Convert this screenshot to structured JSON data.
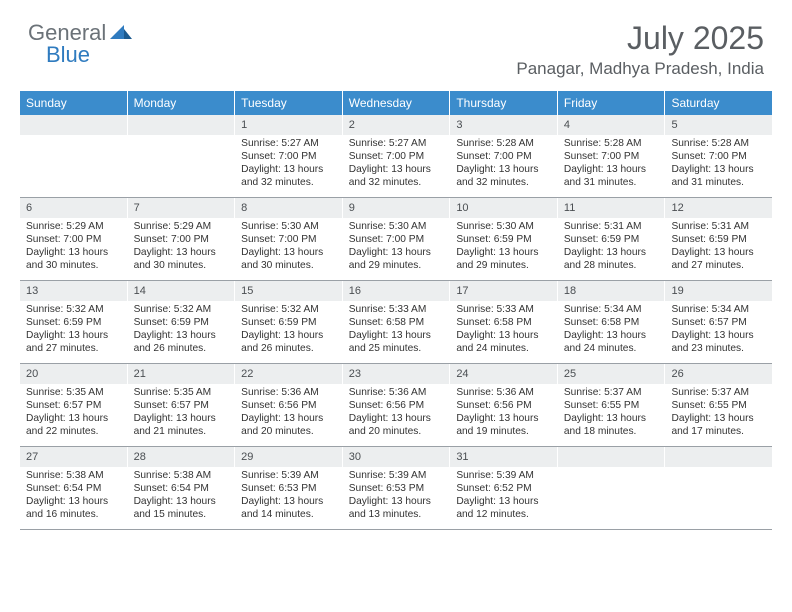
{
  "logo": {
    "general": "General",
    "blue": "Blue"
  },
  "title": "July 2025",
  "location": "Panagar, Madhya Pradesh, India",
  "colors": {
    "header_bg": "#3b8ccc",
    "daynum_bg": "#eceeef",
    "border": "#9aa0a6",
    "text": "#333333",
    "title_text": "#5a5e62"
  },
  "day_names": [
    "Sunday",
    "Monday",
    "Tuesday",
    "Wednesday",
    "Thursday",
    "Friday",
    "Saturday"
  ],
  "weeks": [
    [
      null,
      null,
      {
        "n": "1",
        "sr": "Sunrise: 5:27 AM",
        "ss": "Sunset: 7:00 PM",
        "dl": "Daylight: 13 hours and 32 minutes."
      },
      {
        "n": "2",
        "sr": "Sunrise: 5:27 AM",
        "ss": "Sunset: 7:00 PM",
        "dl": "Daylight: 13 hours and 32 minutes."
      },
      {
        "n": "3",
        "sr": "Sunrise: 5:28 AM",
        "ss": "Sunset: 7:00 PM",
        "dl": "Daylight: 13 hours and 32 minutes."
      },
      {
        "n": "4",
        "sr": "Sunrise: 5:28 AM",
        "ss": "Sunset: 7:00 PM",
        "dl": "Daylight: 13 hours and 31 minutes."
      },
      {
        "n": "5",
        "sr": "Sunrise: 5:28 AM",
        "ss": "Sunset: 7:00 PM",
        "dl": "Daylight: 13 hours and 31 minutes."
      }
    ],
    [
      {
        "n": "6",
        "sr": "Sunrise: 5:29 AM",
        "ss": "Sunset: 7:00 PM",
        "dl": "Daylight: 13 hours and 30 minutes."
      },
      {
        "n": "7",
        "sr": "Sunrise: 5:29 AM",
        "ss": "Sunset: 7:00 PM",
        "dl": "Daylight: 13 hours and 30 minutes."
      },
      {
        "n": "8",
        "sr": "Sunrise: 5:30 AM",
        "ss": "Sunset: 7:00 PM",
        "dl": "Daylight: 13 hours and 30 minutes."
      },
      {
        "n": "9",
        "sr": "Sunrise: 5:30 AM",
        "ss": "Sunset: 7:00 PM",
        "dl": "Daylight: 13 hours and 29 minutes."
      },
      {
        "n": "10",
        "sr": "Sunrise: 5:30 AM",
        "ss": "Sunset: 6:59 PM",
        "dl": "Daylight: 13 hours and 29 minutes."
      },
      {
        "n": "11",
        "sr": "Sunrise: 5:31 AM",
        "ss": "Sunset: 6:59 PM",
        "dl": "Daylight: 13 hours and 28 minutes."
      },
      {
        "n": "12",
        "sr": "Sunrise: 5:31 AM",
        "ss": "Sunset: 6:59 PM",
        "dl": "Daylight: 13 hours and 27 minutes."
      }
    ],
    [
      {
        "n": "13",
        "sr": "Sunrise: 5:32 AM",
        "ss": "Sunset: 6:59 PM",
        "dl": "Daylight: 13 hours and 27 minutes."
      },
      {
        "n": "14",
        "sr": "Sunrise: 5:32 AM",
        "ss": "Sunset: 6:59 PM",
        "dl": "Daylight: 13 hours and 26 minutes."
      },
      {
        "n": "15",
        "sr": "Sunrise: 5:32 AM",
        "ss": "Sunset: 6:59 PM",
        "dl": "Daylight: 13 hours and 26 minutes."
      },
      {
        "n": "16",
        "sr": "Sunrise: 5:33 AM",
        "ss": "Sunset: 6:58 PM",
        "dl": "Daylight: 13 hours and 25 minutes."
      },
      {
        "n": "17",
        "sr": "Sunrise: 5:33 AM",
        "ss": "Sunset: 6:58 PM",
        "dl": "Daylight: 13 hours and 24 minutes."
      },
      {
        "n": "18",
        "sr": "Sunrise: 5:34 AM",
        "ss": "Sunset: 6:58 PM",
        "dl": "Daylight: 13 hours and 24 minutes."
      },
      {
        "n": "19",
        "sr": "Sunrise: 5:34 AM",
        "ss": "Sunset: 6:57 PM",
        "dl": "Daylight: 13 hours and 23 minutes."
      }
    ],
    [
      {
        "n": "20",
        "sr": "Sunrise: 5:35 AM",
        "ss": "Sunset: 6:57 PM",
        "dl": "Daylight: 13 hours and 22 minutes."
      },
      {
        "n": "21",
        "sr": "Sunrise: 5:35 AM",
        "ss": "Sunset: 6:57 PM",
        "dl": "Daylight: 13 hours and 21 minutes."
      },
      {
        "n": "22",
        "sr": "Sunrise: 5:36 AM",
        "ss": "Sunset: 6:56 PM",
        "dl": "Daylight: 13 hours and 20 minutes."
      },
      {
        "n": "23",
        "sr": "Sunrise: 5:36 AM",
        "ss": "Sunset: 6:56 PM",
        "dl": "Daylight: 13 hours and 20 minutes."
      },
      {
        "n": "24",
        "sr": "Sunrise: 5:36 AM",
        "ss": "Sunset: 6:56 PM",
        "dl": "Daylight: 13 hours and 19 minutes."
      },
      {
        "n": "25",
        "sr": "Sunrise: 5:37 AM",
        "ss": "Sunset: 6:55 PM",
        "dl": "Daylight: 13 hours and 18 minutes."
      },
      {
        "n": "26",
        "sr": "Sunrise: 5:37 AM",
        "ss": "Sunset: 6:55 PM",
        "dl": "Daylight: 13 hours and 17 minutes."
      }
    ],
    [
      {
        "n": "27",
        "sr": "Sunrise: 5:38 AM",
        "ss": "Sunset: 6:54 PM",
        "dl": "Daylight: 13 hours and 16 minutes."
      },
      {
        "n": "28",
        "sr": "Sunrise: 5:38 AM",
        "ss": "Sunset: 6:54 PM",
        "dl": "Daylight: 13 hours and 15 minutes."
      },
      {
        "n": "29",
        "sr": "Sunrise: 5:39 AM",
        "ss": "Sunset: 6:53 PM",
        "dl": "Daylight: 13 hours and 14 minutes."
      },
      {
        "n": "30",
        "sr": "Sunrise: 5:39 AM",
        "ss": "Sunset: 6:53 PM",
        "dl": "Daylight: 13 hours and 13 minutes."
      },
      {
        "n": "31",
        "sr": "Sunrise: 5:39 AM",
        "ss": "Sunset: 6:52 PM",
        "dl": "Daylight: 13 hours and 12 minutes."
      },
      null,
      null
    ]
  ]
}
